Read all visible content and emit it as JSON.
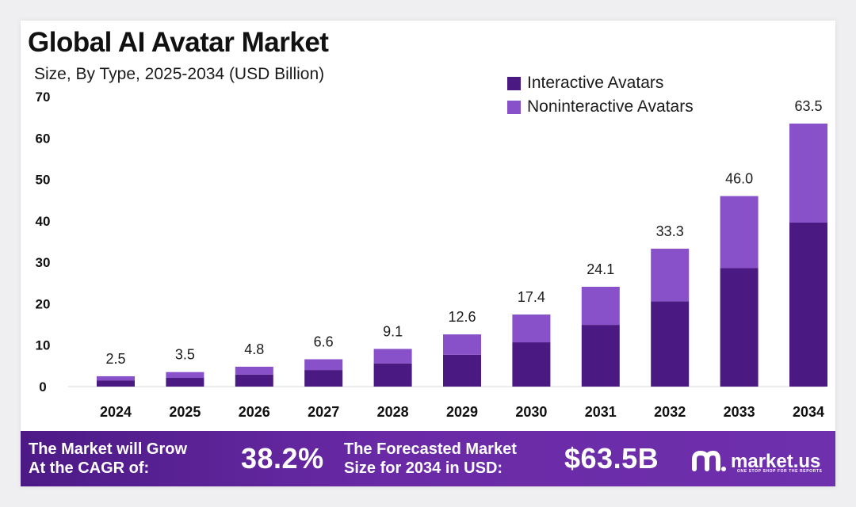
{
  "chart_data": {
    "type": "bar",
    "stacked": true,
    "title": "Global AI Avatar Market",
    "subtitle": "Size, By Type, 2025-2034 (USD Billion)",
    "categories": [
      "2024",
      "2025",
      "2026",
      "2027",
      "2028",
      "2029",
      "2030",
      "2031",
      "2032",
      "2033",
      "2034"
    ],
    "series": [
      {
        "name": "Interactive Avatars",
        "color": "#4a1a82",
        "values": [
          1.5,
          2.1,
          2.9,
          4.0,
          5.6,
          7.7,
          10.7,
          14.9,
          20.6,
          28.6,
          39.6
        ]
      },
      {
        "name": "Noninteractive Avatars",
        "color": "#8850c9",
        "values": [
          1.0,
          1.4,
          1.9,
          2.6,
          3.5,
          4.9,
          6.7,
          9.2,
          12.7,
          17.4,
          23.9
        ]
      }
    ],
    "totals": [
      "2.5",
      "3.5",
      "4.8",
      "6.6",
      "9.1",
      "12.6",
      "17.4",
      "24.1",
      "33.3",
      "46.0",
      "63.5"
    ],
    "ylim": [
      0,
      70
    ],
    "yticks": [
      0,
      10,
      20,
      30,
      40,
      50,
      60,
      70
    ],
    "legend_position": "top-right",
    "grid": false
  },
  "banner": {
    "cagr_label_1": "The Market will Grow",
    "cagr_label_2": "At the CAGR of:",
    "cagr_value": "38.2%",
    "forecast_label_1": "The Forecasted Market",
    "forecast_label_2": "Size for 2034 in USD:",
    "forecast_value": "$63.5B",
    "logo_text": "market.us",
    "logo_tagline": "ONE STOP SHOP FOR THE REPORTS"
  }
}
